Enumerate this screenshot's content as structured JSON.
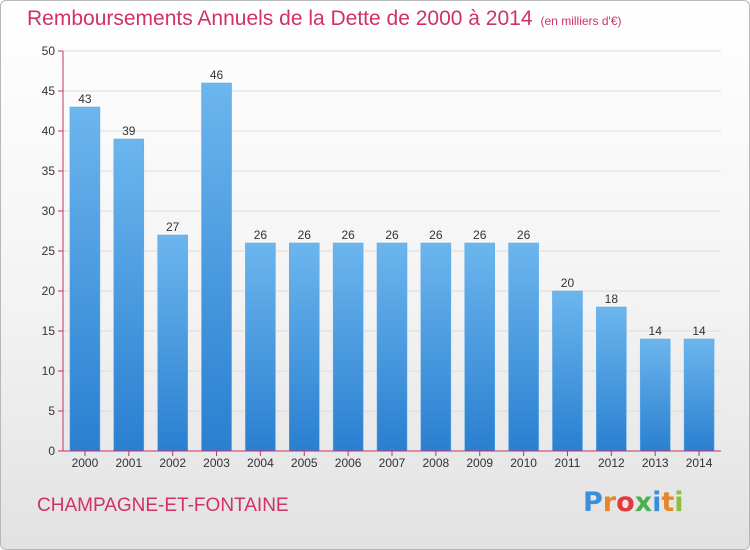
{
  "header": {
    "title": "Remboursements Annuels de la Dette de 2000 à 2014",
    "unit": "(en milliers d'€)"
  },
  "footer": {
    "commune": "CHAMPAGNE-ET-FONTAINE",
    "logo_letters": [
      "P",
      "r",
      "o",
      "x",
      "i",
      "t",
      "i"
    ],
    "logo_colors": [
      "#3a8fd6",
      "#e8842a",
      "#e23a3a",
      "#4caf50",
      "#3a8fd6",
      "#e8842a",
      "#8dbf3a"
    ]
  },
  "colors": {
    "bar_light": "#6cb6ee",
    "bar_dark": "#2a7fd0",
    "axis": "#c8306a",
    "grid": "#dddddd",
    "title": "#d2306a"
  },
  "chart_data": {
    "type": "bar",
    "categories": [
      "2000",
      "2001",
      "2002",
      "2003",
      "2004",
      "2005",
      "2006",
      "2007",
      "2008",
      "2009",
      "2010",
      "2011",
      "2012",
      "2013",
      "2014"
    ],
    "values": [
      43,
      39,
      27,
      46,
      26,
      26,
      26,
      26,
      26,
      26,
      26,
      20,
      18,
      14,
      14
    ],
    "title": "Remboursements Annuels de la Dette de 2000 à 2014",
    "xlabel": "",
    "ylabel": "",
    "ylim": [
      0,
      50
    ],
    "yticks": [
      0,
      5,
      10,
      15,
      20,
      25,
      30,
      35,
      40,
      45,
      50
    ],
    "grid": true,
    "data_labels": true
  }
}
